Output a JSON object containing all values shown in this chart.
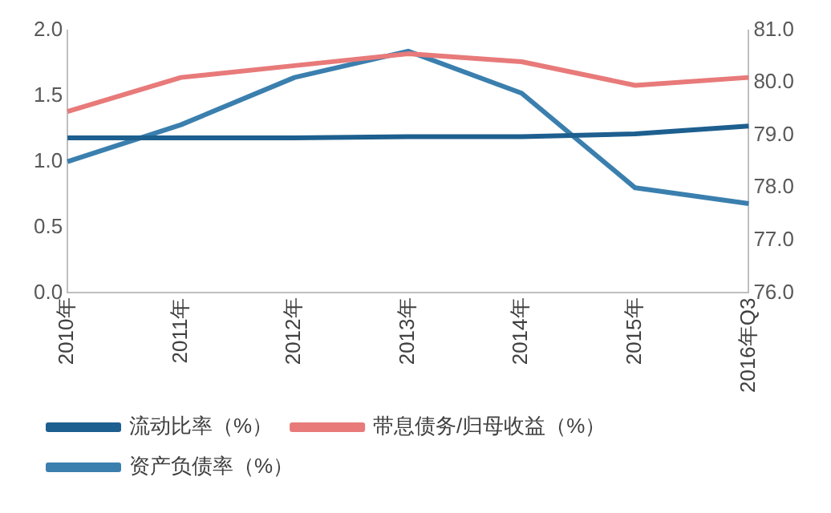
{
  "chart_data": {
    "type": "line",
    "categories": [
      "2010年",
      "2011年",
      "2012年",
      "2013年",
      "2014年",
      "2015年",
      "2016年Q3"
    ],
    "series": [
      {
        "name": "流动比率（%）",
        "color": "#1d5f8f",
        "values": [
          1.18,
          1.18,
          1.18,
          1.19,
          1.19,
          1.21,
          1.27
        ]
      },
      {
        "name": "带息债务/归母收益（%）",
        "color": "#e87a7a",
        "values": [
          1.38,
          1.64,
          1.73,
          1.82,
          1.76,
          1.58,
          1.64
        ]
      },
      {
        "name": "资产负债率（%）",
        "color": "#3a7fae",
        "axis": "y2",
        "values": [
          78.5,
          79.2,
          80.1,
          80.6,
          79.8,
          78.0,
          77.7
        ]
      }
    ],
    "ylim": [
      0,
      2
    ],
    "yticks": [
      {
        "value": 0,
        "label": "0.0"
      },
      {
        "value": 0.5,
        "label": "0.5"
      },
      {
        "value": 1,
        "label": "1.0"
      },
      {
        "value": 1.5,
        "label": "1.5"
      },
      {
        "value": 2,
        "label": "2.0"
      }
    ],
    "y2lim": [
      76,
      81
    ],
    "y2ticks": [
      {
        "value": 76,
        "label": "76.0"
      },
      {
        "value": 77,
        "label": "77.0"
      },
      {
        "value": 78,
        "label": "78.0"
      },
      {
        "value": 79,
        "label": "79.0"
      },
      {
        "value": 80,
        "label": "80.0"
      },
      {
        "value": 81,
        "label": "81.0"
      }
    ],
    "grid": false,
    "legend": "bottom",
    "marker": "none",
    "line_style": "solid"
  }
}
